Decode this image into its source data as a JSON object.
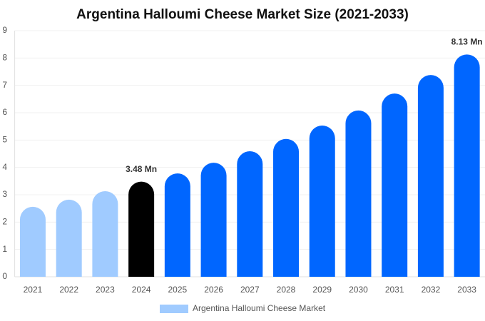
{
  "chart_data": {
    "type": "bar",
    "title": "Argentina Halloumi Cheese Market Size (2021-2033)",
    "categories": [
      "2021",
      "2022",
      "2023",
      "2024",
      "2025",
      "2026",
      "2027",
      "2028",
      "2029",
      "2030",
      "2031",
      "2032",
      "2033"
    ],
    "series": [
      {
        "name": "Argentina Halloumi Cheese Market",
        "color": "#a0cbff",
        "values": [
          2.56,
          2.82,
          3.13,
          3.48,
          3.78,
          4.17,
          4.59,
          5.04,
          5.53,
          6.08,
          6.7,
          7.38,
          8.13
        ],
        "value_labels": [
          null,
          null,
          null,
          "3.48 Mn",
          null,
          null,
          null,
          null,
          null,
          null,
          null,
          null,
          "8.13 Mn"
        ]
      }
    ],
    "bar_colors": [
      "#a0cbff",
      "#a0cbff",
      "#a0cbff",
      "#000000",
      "#0066ff",
      "#0066ff",
      "#0066ff",
      "#0066ff",
      "#0066ff",
      "#0066ff",
      "#0066ff",
      "#0066ff",
      "#0066ff"
    ],
    "ylim": [
      0,
      9
    ],
    "yticks": [
      0,
      1,
      2,
      3,
      4,
      5,
      6,
      7,
      8,
      9
    ],
    "grid": true,
    "legend": "bottom"
  }
}
